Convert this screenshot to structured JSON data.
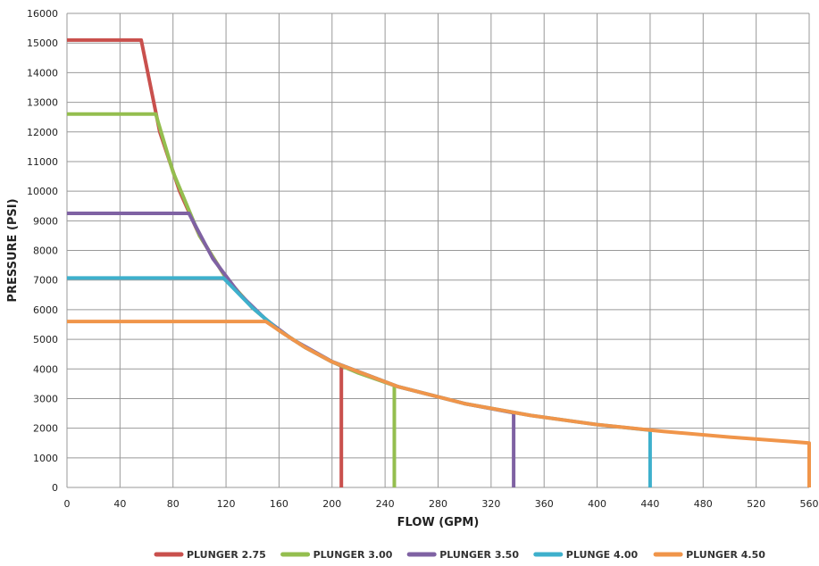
{
  "chart_data": {
    "type": "line",
    "xlabel": "FLOW (GPM)",
    "ylabel": "PRESSURE (PSI)",
    "xlim": [
      0,
      560
    ],
    "ylim": [
      0,
      16000
    ],
    "x_ticks": [
      0,
      40,
      80,
      120,
      160,
      200,
      240,
      280,
      320,
      360,
      400,
      440,
      480,
      520,
      560
    ],
    "y_ticks": [
      0,
      1000,
      2000,
      3000,
      4000,
      5000,
      6000,
      7000,
      8000,
      9000,
      10000,
      11000,
      12000,
      13000,
      14000,
      15000,
      16000
    ],
    "grid": true,
    "legend_position": "bottom",
    "series": [
      {
        "name": "PLUNGER 2.75",
        "color": "#c9504d",
        "points": [
          [
            0,
            15100
          ],
          [
            56,
            15100
          ],
          [
            70,
            12000
          ],
          [
            85,
            10000
          ],
          [
            100,
            8500
          ],
          [
            120,
            7070
          ],
          [
            140,
            6060
          ],
          [
            160,
            5300
          ],
          [
            180,
            4720
          ],
          [
            200,
            4240
          ],
          [
            207,
            4100
          ],
          [
            207,
            0
          ]
        ]
      },
      {
        "name": "PLUNGER 3.00",
        "color": "#94be4f",
        "points": [
          [
            0,
            12600
          ],
          [
            67,
            12600
          ],
          [
            80,
            10650
          ],
          [
            100,
            8500
          ],
          [
            120,
            7070
          ],
          [
            140,
            6060
          ],
          [
            160,
            5300
          ],
          [
            180,
            4720
          ],
          [
            200,
            4240
          ],
          [
            220,
            3860
          ],
          [
            247,
            3440
          ],
          [
            247,
            0
          ]
        ]
      },
      {
        "name": "PLUNGER 3.50",
        "color": "#7f62a3",
        "points": [
          [
            0,
            9250
          ],
          [
            92,
            9250
          ],
          [
            110,
            7730
          ],
          [
            130,
            6540
          ],
          [
            150,
            5670
          ],
          [
            170,
            5000
          ],
          [
            200,
            4250
          ],
          [
            250,
            3400
          ],
          [
            300,
            2830
          ],
          [
            337,
            2520
          ],
          [
            337,
            0
          ]
        ]
      },
      {
        "name": "PLUNGE 4.00",
        "color": "#3eb0cc",
        "points": [
          [
            0,
            7070
          ],
          [
            118,
            7070
          ],
          [
            140,
            6060
          ],
          [
            160,
            5300
          ],
          [
            180,
            4720
          ],
          [
            200,
            4240
          ],
          [
            250,
            3400
          ],
          [
            300,
            2830
          ],
          [
            350,
            2430
          ],
          [
            400,
            2120
          ],
          [
            440,
            1930
          ],
          [
            440,
            0
          ]
        ]
      },
      {
        "name": "PLUNGER 4.50",
        "color": "#f0954a",
        "points": [
          [
            0,
            5600
          ],
          [
            150,
            5600
          ],
          [
            165,
            5150
          ],
          [
            180,
            4720
          ],
          [
            200,
            4240
          ],
          [
            250,
            3400
          ],
          [
            300,
            2830
          ],
          [
            350,
            2430
          ],
          [
            400,
            2120
          ],
          [
            450,
            1890
          ],
          [
            500,
            1700
          ],
          [
            560,
            1500
          ],
          [
            560,
            0
          ]
        ]
      }
    ]
  }
}
